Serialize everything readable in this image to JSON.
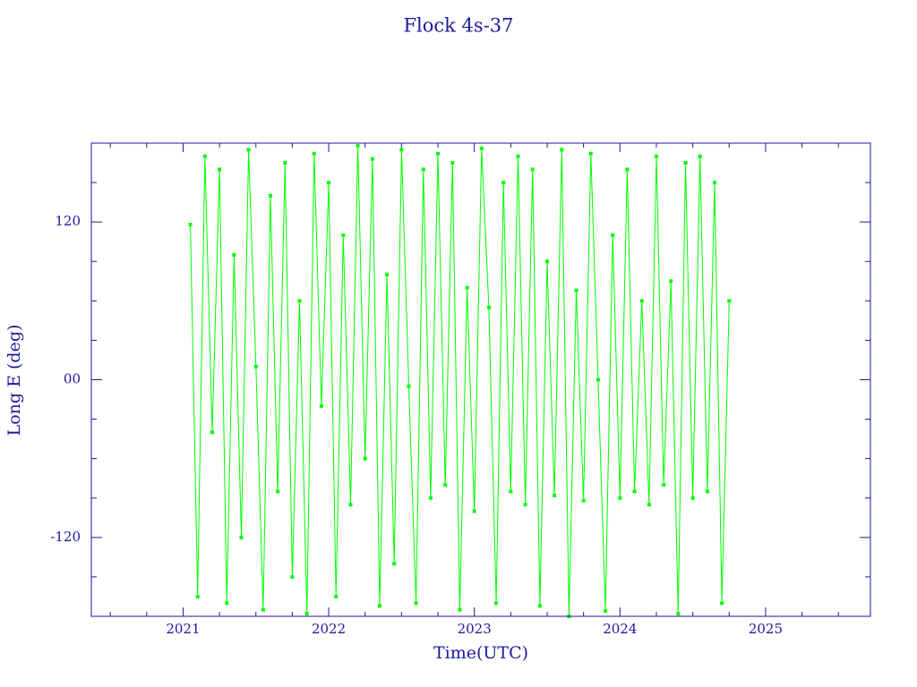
{
  "chart_data": {
    "type": "line",
    "title": "Flock 4s-37",
    "xlabel": "Time(UTC)",
    "ylabel": "Long E (deg)",
    "xlim": [
      2020.37,
      2025.72
    ],
    "xticks": [
      2021,
      2022,
      2023,
      2024,
      2025
    ],
    "xticks_minor": [
      2020.5,
      2020.75,
      2021.25,
      2021.5,
      2021.75,
      2022.25,
      2022.5,
      2022.75,
      2023.25,
      2023.5,
      2023.75,
      2024.25,
      2024.5,
      2024.75,
      2025.25,
      2025.5
    ],
    "ylim": [
      -180,
      180
    ],
    "yticks": [
      -120,
      {
        "value": 0,
        "label": "00"
      },
      120
    ],
    "yticks_minor": [
      -150,
      -90,
      -60,
      -30,
      30,
      60,
      90,
      150
    ],
    "axis_color": "#1a1a9c",
    "series": [
      {
        "color": "#00ff00",
        "x": [
          2021.05,
          2021.1,
          2021.15,
          2021.2,
          2021.25,
          2021.3,
          2021.35,
          2021.4,
          2021.45,
          2021.5,
          2021.55,
          2021.6,
          2021.65,
          2021.7,
          2021.75,
          2021.8,
          2021.85,
          2021.9,
          2021.95,
          2022.0,
          2022.05,
          2022.1,
          2022.15,
          2022.2,
          2022.25,
          2022.3,
          2022.35,
          2022.4,
          2022.45,
          2022.5,
          2022.55,
          2022.6,
          2022.65,
          2022.7,
          2022.75,
          2022.8,
          2022.85,
          2022.9,
          2022.95,
          2023.0,
          2023.05,
          2023.1,
          2023.15,
          2023.2,
          2023.25,
          2023.3,
          2023.35,
          2023.4,
          2023.45,
          2023.5,
          2023.55,
          2023.6,
          2023.65,
          2023.7,
          2023.75,
          2023.8,
          2023.85,
          2023.9,
          2023.95,
          2024.0,
          2024.05,
          2024.1,
          2024.15,
          2024.2,
          2024.25,
          2024.3,
          2024.35,
          2024.4,
          2024.45,
          2024.5,
          2024.55,
          2024.6,
          2024.65,
          2024.7,
          2024.75
        ],
        "values": [
          118,
          -165,
          170,
          -40,
          160,
          -170,
          95,
          -120,
          175,
          10,
          -175,
          140,
          -85,
          165,
          -150,
          60,
          -178,
          172,
          -20,
          150,
          -165,
          110,
          -95,
          178,
          -60,
          168,
          -172,
          80,
          -140,
          175,
          -5,
          -170,
          160,
          -90,
          172,
          -80,
          165,
          -175,
          70,
          -100,
          176,
          55,
          -170,
          150,
          -85,
          170,
          -95,
          160,
          -172,
          90,
          -88,
          175,
          -180,
          68,
          -92,
          172,
          0,
          -176,
          110,
          -90,
          160,
          -85,
          60,
          -95,
          170,
          -80,
          75,
          -178,
          165,
          -90,
          170,
          -85,
          150,
          -170,
          60
        ]
      }
    ]
  }
}
